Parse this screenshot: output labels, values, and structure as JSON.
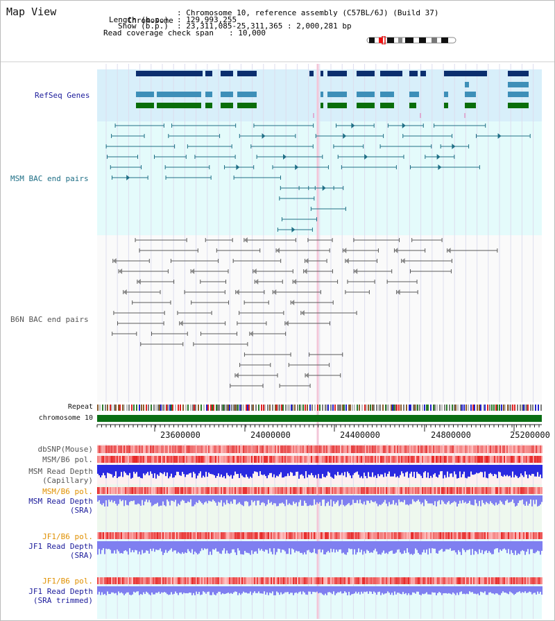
{
  "title": "Map View",
  "header": {
    "chromosome_key": "Chromosome",
    "chromosome_val": ": Chromosome 10, reference assembly (C57BL/6J) (Build 37)",
    "length_key": "Length (b.p.)",
    "length_val": ": 129,993,255",
    "show_key": "Show (b.p.)",
    "show_val": ": 23,311,085-25,311,365 : 2,000,281 bp",
    "coverage_key": "Read coverage check span",
    "coverage_val": ": 10,000"
  },
  "tracks": {
    "refseq": "RefSeq Genes",
    "msm_bac": "MSM BAC end pairs",
    "b6n_bac": "B6N BAC end pairs",
    "repeat": "Repeat",
    "chromosome": "chromosome 10",
    "dbsnp": "dbSNP(Mouse)",
    "msm_pol": "MSM/B6 pol.",
    "msm_depth_cap_1": "MSM Read Depth",
    "msm_depth_cap_2": "(Capillary)",
    "msm_pol_sra": "MSM/B6 pol.",
    "msm_depth_sra_1": "MSM Read Depth",
    "msm_depth_sra_2": "(SRA)",
    "jf1_pol": "JF1/B6 pol.",
    "jf1_depth_1": "JF1 Read Depth",
    "jf1_depth_2": "(SRA)",
    "jf1_pol_trim": "JF1/B6 pol.",
    "jf1_trim_1": "JF1 Read Depth",
    "jf1_trim_2": "(SRA trimmed)"
  },
  "axis": {
    "ticks": [
      "23600000",
      "24000000",
      "24400000",
      "24800000",
      "25200000"
    ]
  },
  "colors": {
    "refseq_bg": "#d8effa",
    "bac_bg": "#e4fbfb",
    "gene_dark": "#0b2e6e",
    "gene_light": "#3d8fb8",
    "gene_green": "#0a6e0a",
    "msm_bac": "#1f6f86",
    "b6n_bac": "#5a5a5a",
    "chromosome_bar": "#0a6e14",
    "depth_blue": "#2a2ae0",
    "depth_sra": "#7f7ff0",
    "label_blue": "#1a1a9a",
    "label_orange": "#e09000"
  }
}
